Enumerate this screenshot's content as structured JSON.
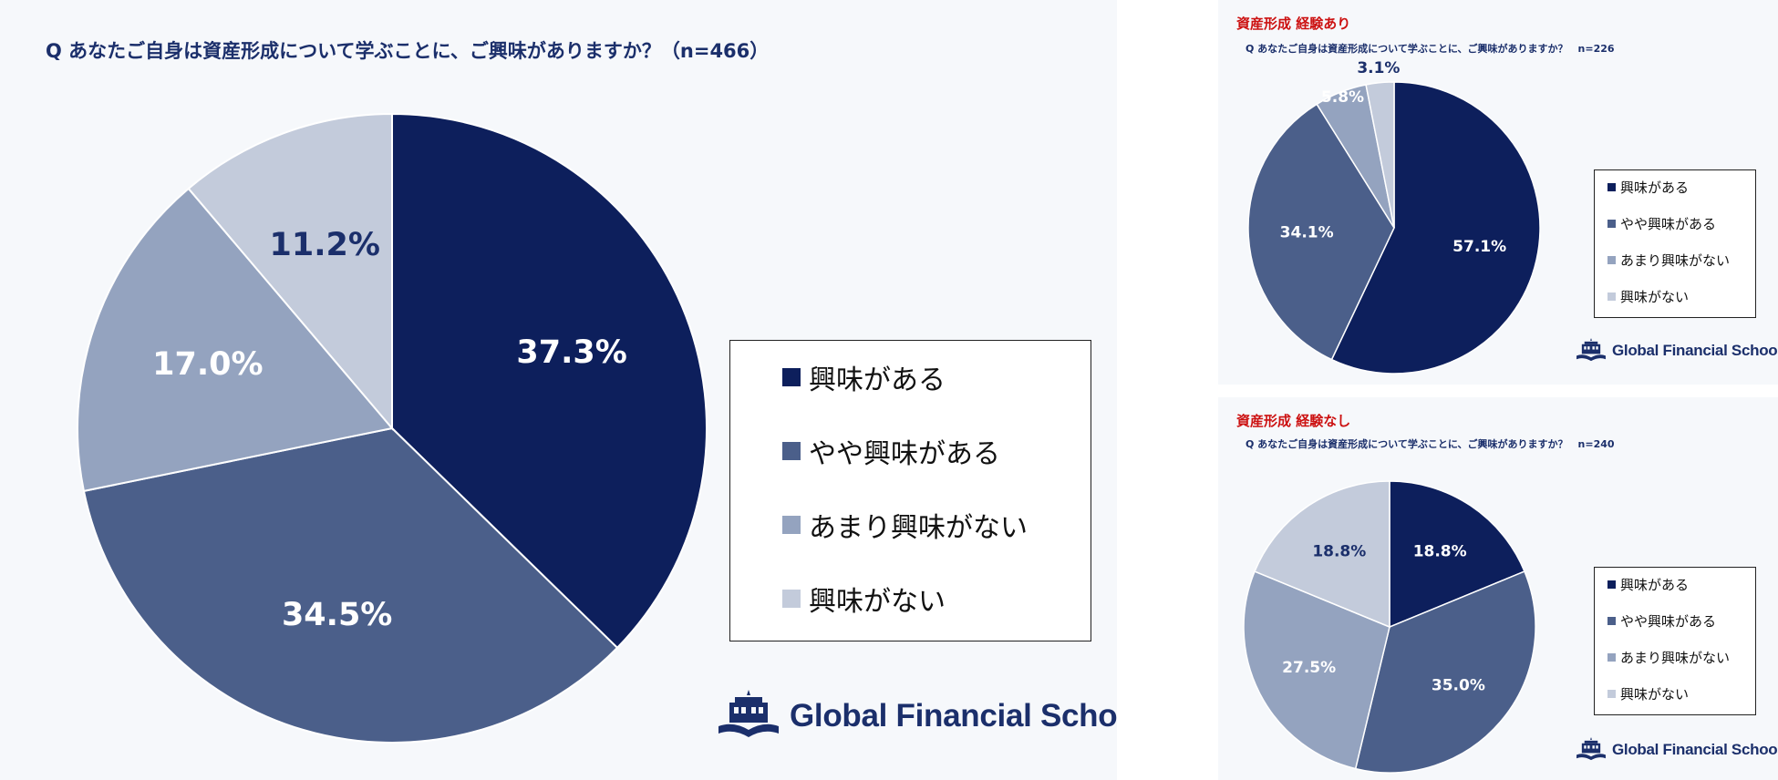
{
  "colors": {
    "series": [
      "#0d1f5c",
      "#4b5f8a",
      "#94a3bf",
      "#c3cbdb"
    ],
    "title": "#1b2f6b",
    "subtitle": "#cc1111",
    "background": "#f6f8fb"
  },
  "main": {
    "question": "Q あなたご自身は資産形成について学ぶことに、ご興味がありますか？（n=466）",
    "legend": [
      "興味がある",
      "やや興味がある",
      "あまり興味がない",
      "興味がない"
    ],
    "logo_text": "Global Financial School",
    "logo_icon": "school-building-book-icon"
  },
  "top_panel": {
    "subtitle": "資産形成 経験あり",
    "question": "Q あなたご自身は資産形成について学ぶことに、ご興味がありますか？　n=226",
    "legend": [
      "興味がある",
      "やや興味がある",
      "あまり興味がない",
      "興味がない"
    ],
    "logo_text": "Global Financial School",
    "logo_icon": "school-building-book-icon"
  },
  "bottom_panel": {
    "subtitle": "資産形成 経験なし",
    "question": "Q あなたご自身は資産形成について学ぶことに、ご興味がありますか？　n=240",
    "legend": [
      "興味がある",
      "やや興味がある",
      "あまり興味がない",
      "興味がない"
    ],
    "logo_text": "Global Financial School",
    "logo_icon": "school-building-book-icon"
  },
  "chart_data": [
    {
      "type": "pie",
      "title": "Q あなたご自身は資産形成について学ぶことに、ご興味がありますか？（n=466）",
      "categories": [
        "興味がある",
        "やや興味がある",
        "あまり興味がない",
        "興味がない"
      ],
      "values": [
        37.3,
        34.5,
        17.0,
        11.2
      ],
      "labels": [
        "37.3%",
        "34.5%",
        "17.0%",
        "11.2%"
      ],
      "legend_position": "right"
    },
    {
      "type": "pie",
      "title": "資産形成 経験あり",
      "categories": [
        "興味がある",
        "やや興味がある",
        "あまり興味がない",
        "興味がない"
      ],
      "values": [
        57.1,
        34.1,
        5.8,
        3.1
      ],
      "labels": [
        "57.1%",
        "34.1%",
        "5.8%",
        "3.1%"
      ],
      "legend_position": "right"
    },
    {
      "type": "pie",
      "title": "資産形成 経験なし",
      "categories": [
        "興味がある",
        "やや興味がある",
        "あまり興味がない",
        "興味がない"
      ],
      "values": [
        18.8,
        35.0,
        27.5,
        18.8
      ],
      "labels": [
        "18.8%",
        "35.0%",
        "27.5%",
        "18.8%"
      ],
      "legend_position": "right"
    }
  ]
}
